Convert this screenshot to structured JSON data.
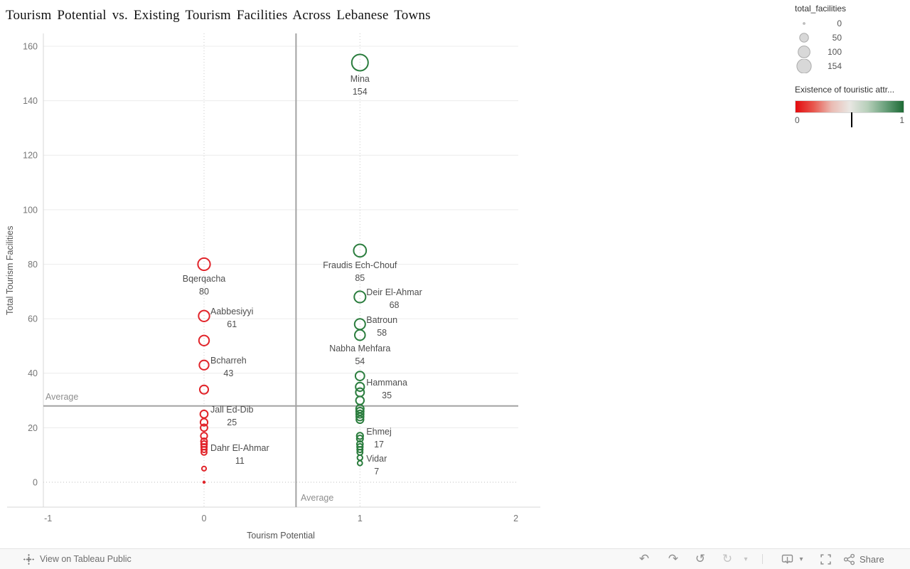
{
  "title": "Tourism Potential vs. Existing Tourism Facilities Across Lebanese Towns",
  "chart_data": {
    "type": "scatter",
    "title": "Tourism Potential vs. Existing Tourism Facilities Across Lebanese Towns",
    "xlabel": "Tourism Potential",
    "ylabel": "Total Tourism Facilities",
    "x_ticks": [
      -1,
      0,
      1,
      2
    ],
    "y_ticks": [
      0,
      20,
      40,
      60,
      80,
      100,
      120,
      140,
      160
    ],
    "xlim": [
      -1.03,
      2.01
    ],
    "ylim": [
      -9.2,
      164.7
    ],
    "grid": "horizontal solid, dotted verticals at x=0 and x=1",
    "size_legend_field": "total_facilities",
    "size_max_value": 154,
    "avg_x": {
      "value": 0.59,
      "label": "Average"
    },
    "avg_y": {
      "value": 28,
      "label": "Average"
    },
    "series": [
      {
        "name": "red (no touristic attraction, x=0)",
        "x": 0,
        "color": "#e1242a",
        "points": [
          {
            "y": 80,
            "label": "Bqerqacha",
            "label_pos": "below"
          },
          {
            "y": 61,
            "label": "Aabbesiyyi",
            "label_pos": "right"
          },
          {
            "y": 52
          },
          {
            "y": 43,
            "label": "Bcharreh",
            "label_pos": "right"
          },
          {
            "y": 34
          },
          {
            "y": 25,
            "label": "Jall Ed-Dib",
            "label_pos": "right"
          },
          {
            "y": 22
          },
          {
            "y": 20
          },
          {
            "y": 17
          },
          {
            "y": 15
          },
          {
            "y": 14
          },
          {
            "y": 13
          },
          {
            "y": 12
          },
          {
            "y": 11,
            "label": "Dahr El-Ahmar",
            "label_pos": "right"
          },
          {
            "y": 5
          },
          {
            "y": 0
          }
        ]
      },
      {
        "name": "green (has touristic attraction, x=1)",
        "x": 1,
        "color": "#2b7d3e",
        "points": [
          {
            "y": 154,
            "label": "Mina",
            "label_pos": "below"
          },
          {
            "y": 85,
            "label": "Fraudis Ech-Chouf",
            "label_pos": "below"
          },
          {
            "y": 68,
            "label": "Deir El-Ahmar",
            "label_pos": "right"
          },
          {
            "y": 58,
            "label": "Batroun",
            "label_pos": "right"
          },
          {
            "y": 54,
            "label": "Nabha Mehfara",
            "label_pos": "below"
          },
          {
            "y": 39
          },
          {
            "y": 35,
            "label": "Hammana",
            "label_pos": "right"
          },
          {
            "y": 33
          },
          {
            "y": 30
          },
          {
            "y": 27
          },
          {
            "y": 26
          },
          {
            "y": 25
          },
          {
            "y": 24
          },
          {
            "y": 23
          },
          {
            "y": 17,
            "label": "Ehmej",
            "label_pos": "right"
          },
          {
            "y": 16
          },
          {
            "y": 14
          },
          {
            "y": 13
          },
          {
            "y": 12
          },
          {
            "y": 11
          },
          {
            "y": 9
          },
          {
            "y": 7,
            "label": "Vidar",
            "label_pos": "right"
          }
        ]
      }
    ]
  },
  "legends": {
    "size": {
      "title": "total_facilities",
      "entries": [
        {
          "value": "0"
        },
        {
          "value": "50"
        },
        {
          "value": "100"
        },
        {
          "value": "154"
        }
      ]
    },
    "color": {
      "title": "Existence of touristic attr...",
      "min_label": "0",
      "max_label": "1",
      "stops": [
        "#e30b0e",
        "#e8574e",
        "#eabbb3",
        "#e9e7e3",
        "#b7cfba",
        "#69a07b",
        "#1d6a35"
      ],
      "tick_fraction": 0.51
    }
  },
  "toolbar": {
    "view_label": "View on Tableau Public",
    "share_label": "Share",
    "icons": {
      "undo": "↶",
      "redo": "↷",
      "replay": "↺",
      "refresh": "↻",
      "caret": "▾"
    }
  }
}
